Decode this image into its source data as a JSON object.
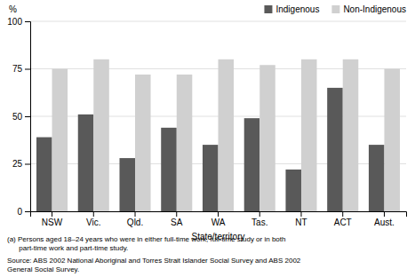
{
  "chart_data": {
    "type": "bar",
    "categories": [
      "NSW",
      "Vic.",
      "Qld.",
      "SA",
      "WA",
      "Tas.",
      "NT",
      "ACT",
      "Aust."
    ],
    "series": [
      {
        "name": "Indigenous",
        "color": "#595959",
        "values": [
          39,
          51,
          28,
          44,
          35,
          49,
          22,
          65,
          35
        ]
      },
      {
        "name": "Non-Indigenous",
        "color": "#d0d0d0",
        "values": [
          75,
          80,
          72,
          72,
          80,
          77,
          80,
          80,
          75
        ]
      }
    ],
    "ylim": [
      0,
      100
    ],
    "yticks": [
      0,
      25,
      50,
      75,
      100
    ],
    "ylabel": "%",
    "xlabel": "State/territory",
    "grid": true,
    "legend": "upper right",
    "annotations": [
      "(a) Persons aged 18–24 years who were in either full-time work, full-time study or in both",
      "      part-time work and part-time study.",
      "Source: ABS 2002 National Aboriginal and Torres Strait Islander Social Survey and ABS 2002",
      "General Social Survey."
    ]
  }
}
